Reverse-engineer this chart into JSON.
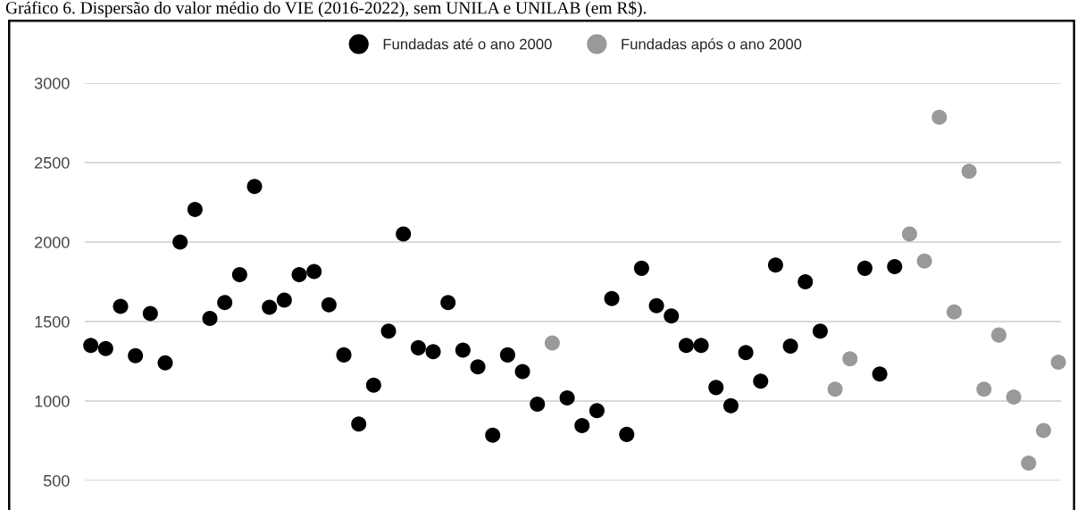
{
  "chart_data": {
    "type": "scatter",
    "title": "Gráfico 6. Dispersão do valor médio do VIE (2016-2022), sem UNILA e UNILAB (em R$).",
    "categories": [
      null,
      null,
      null,
      null,
      null,
      null,
      null,
      null,
      null,
      null,
      null,
      null,
      null,
      null,
      null,
      null,
      null,
      null,
      null,
      null,
      null,
      null,
      null,
      null,
      null,
      null,
      null,
      null,
      null,
      null,
      null,
      null,
      null,
      null,
      null,
      null,
      null,
      null,
      null,
      null,
      null,
      null,
      null,
      null,
      null,
      null,
      null,
      null,
      null,
      null,
      null,
      null,
      null,
      null,
      null,
      null,
      null,
      null,
      null,
      null,
      null,
      null,
      null,
      null,
      null,
      null
    ],
    "series": [
      {
        "name": "Fundadas até o ano 2000",
        "color": "#000000",
        "values": [
          1350,
          1330,
          1595,
          1285,
          1550,
          1240,
          2000,
          2205,
          1520,
          1620,
          1795,
          2350,
          1590,
          1635,
          1795,
          1815,
          1605,
          1290,
          855,
          1100,
          1440,
          2050,
          1335,
          1310,
          1620,
          1320,
          1215,
          785,
          1290,
          1185,
          980,
          null,
          1020,
          845,
          940,
          1645,
          790,
          1835,
          1600,
          1535,
          1350,
          1350,
          1085,
          970,
          1305,
          1125,
          1855,
          1345,
          1750,
          1440,
          null,
          null,
          1835,
          1170,
          1845,
          null,
          null,
          null,
          null,
          null,
          null,
          null,
          null,
          null,
          null,
          null
        ]
      },
      {
        "name": "Fundadas após o ano 2000",
        "color": "#999999",
        "values": [
          null,
          null,
          null,
          null,
          null,
          null,
          null,
          null,
          null,
          null,
          null,
          null,
          null,
          null,
          null,
          null,
          null,
          null,
          null,
          null,
          null,
          null,
          null,
          null,
          null,
          null,
          null,
          null,
          null,
          null,
          null,
          1365,
          null,
          null,
          null,
          null,
          null,
          null,
          null,
          null,
          null,
          null,
          null,
          null,
          null,
          null,
          null,
          null,
          null,
          null,
          1075,
          1265,
          null,
          null,
          null,
          2050,
          1880,
          2785,
          1560,
          2445,
          1075,
          1415,
          1025,
          610,
          815,
          1245
        ]
      }
    ],
    "ylim": [
      500,
      3000
    ],
    "yticks": [
      500,
      1000,
      1500,
      2000,
      2500,
      3000
    ],
    "grid": "y",
    "legend": "top",
    "marker": "circle",
    "tick_labels": "y"
  }
}
